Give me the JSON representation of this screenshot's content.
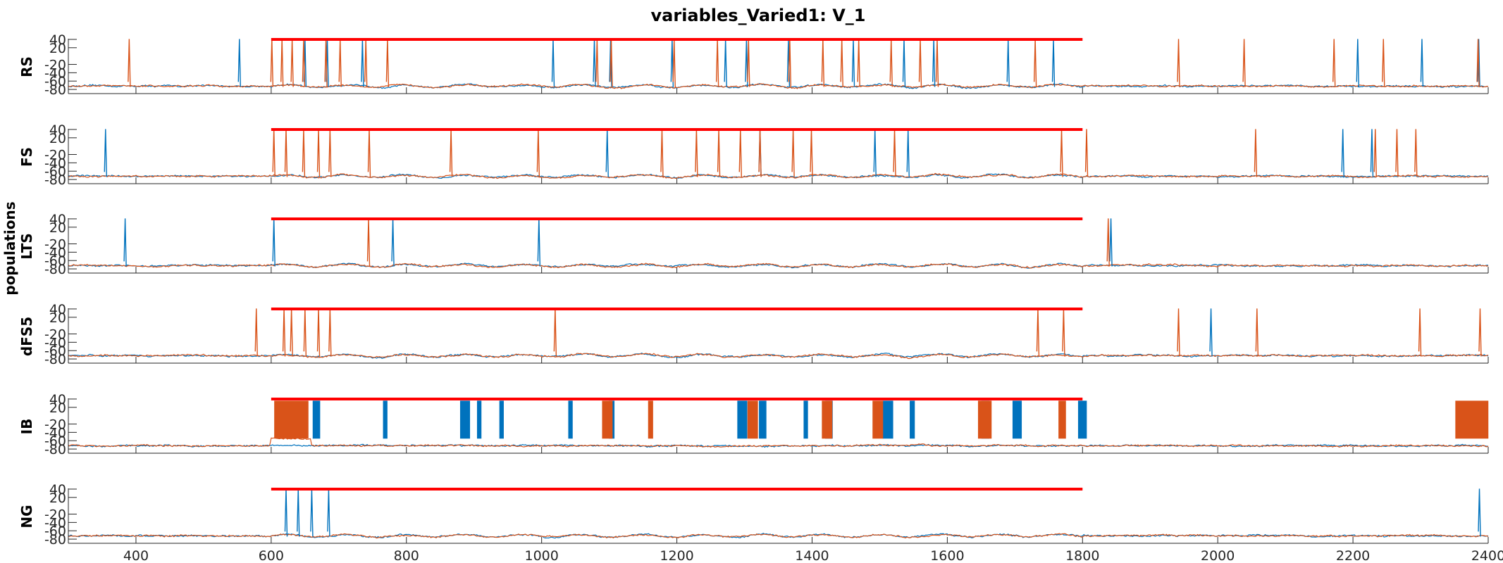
{
  "chart_data": {
    "type": "line",
    "title": "variables_Varied1: V_1",
    "group_ylabel": "populations",
    "xlim": [
      300,
      2400
    ],
    "xticks": [
      400,
      600,
      800,
      1000,
      1200,
      1400,
      1600,
      1800,
      2000,
      2200,
      2400
    ],
    "ylim": [
      -90,
      45
    ],
    "yticks": [
      40,
      20,
      -20,
      -40,
      -60,
      -80
    ],
    "ytick_labels": [
      "40",
      "20",
      "-20",
      "-40",
      "-60",
      "-80"
    ],
    "stimulus_bar": {
      "x_start": 600,
      "x_end": 1800,
      "y": 40,
      "color": "#FF0000"
    },
    "series_colors": {
      "series1": "#0072BD",
      "series2": "#D95319"
    },
    "panels": [
      {
        "label": "RS",
        "series1_spikes": [
          553,
          650,
          683,
          735,
          1017,
          1078,
          1102,
          1193,
          1272,
          1303,
          1365,
          1461,
          1536,
          1580,
          1690,
          1757,
          2207,
          2302,
          2386
        ],
        "series2_spikes": [
          390,
          601,
          616,
          631,
          648,
          681,
          702,
          740,
          772,
          1082,
          1103,
          1196,
          1260,
          1306,
          1367,
          1416,
          1444,
          1469,
          1517,
          1560,
          1585,
          1730,
          1942,
          2039,
          2172,
          2245,
          2385
        ]
      },
      {
        "label": "FS",
        "series1_spikes": [
          355,
          1097,
          1323,
          1493,
          1542,
          2185,
          2228
        ],
        "series2_spikes": [
          604,
          622,
          648,
          670,
          687,
          745,
          866,
          995,
          1178,
          1229,
          1262,
          1294,
          1323,
          1372,
          1399,
          1522,
          1769,
          1806,
          2056,
          2233,
          2265,
          2293
        ]
      },
      {
        "label": "LTS",
        "series1_spikes": [
          384,
          604,
          780,
          996,
          1842
        ],
        "series2_spikes": [
          744,
          1838
        ]
      },
      {
        "label": "dFS5",
        "series1_spikes": [
          1990
        ],
        "series2_spikes": [
          578,
          619,
          630,
          650,
          670,
          687,
          1020,
          1734,
          1772,
          1942,
          2058,
          2299,
          2388
        ]
      },
      {
        "label": "IB",
        "series1_bursts": [
          [
            662,
            672
          ],
          [
            766,
            772
          ],
          [
            880,
            894
          ],
          [
            905,
            911
          ],
          [
            938,
            944
          ],
          [
            1040,
            1046
          ],
          [
            1100,
            1108
          ],
          [
            1290,
            1304
          ],
          [
            1322,
            1332
          ],
          [
            1388,
            1394
          ],
          [
            1420,
            1430
          ],
          [
            1505,
            1520
          ],
          [
            1545,
            1552
          ],
          [
            1651,
            1662
          ],
          [
            1697,
            1710
          ],
          [
            1794,
            1806
          ]
        ],
        "series2_bursts": [
          [
            605,
            655
          ],
          [
            1090,
            1105
          ],
          [
            1158,
            1165
          ],
          [
            1305,
            1320
          ],
          [
            1415,
            1430
          ],
          [
            1490,
            1505
          ],
          [
            1646,
            1665
          ],
          [
            1765,
            1775
          ],
          [
            2352,
            2400
          ]
        ]
      },
      {
        "label": "NG",
        "series1_spikes": [
          622,
          640,
          660,
          685,
          2387
        ],
        "series2_spikes": []
      }
    ]
  }
}
